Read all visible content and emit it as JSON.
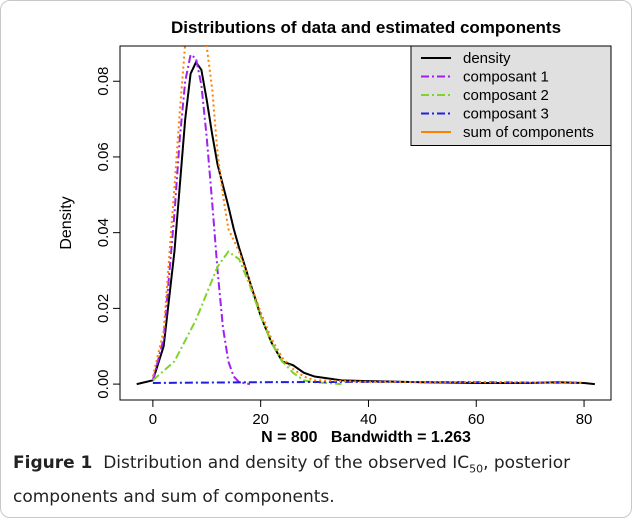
{
  "chart_data": {
    "type": "line",
    "title": "Distributions of data and estimated components",
    "xlabel": "N = 800   Bandwidth = 1.263",
    "ylabel": "Density",
    "xlim": [
      -6.1,
      85
    ],
    "ylim": [
      -0.0042,
      0.0893
    ],
    "xticks": [
      0,
      20,
      40,
      60,
      80
    ],
    "yticks": [
      {
        "value": 0,
        "label": "0.00"
      },
      {
        "value": 0.02,
        "label": "0.02"
      },
      {
        "value": 0.04,
        "label": "0.04"
      },
      {
        "value": 0.06,
        "label": "0.06"
      },
      {
        "value": 0.08,
        "label": "0.08"
      }
    ],
    "legend": "top-right",
    "series": [
      {
        "name": "density",
        "color": "#000000",
        "dash": "none",
        "legend_dash": "none",
        "x": [
          -3,
          0,
          2,
          4,
          6,
          7,
          8,
          9,
          10,
          11,
          12,
          14,
          15,
          16,
          18,
          20,
          22,
          24,
          26,
          28,
          30,
          35,
          40,
          50,
          60,
          70,
          75,
          80,
          82
        ],
        "values": [
          0,
          0.001,
          0.01,
          0.035,
          0.07,
          0.082,
          0.085,
          0.083,
          0.075,
          0.066,
          0.058,
          0.047,
          0.041,
          0.036,
          0.027,
          0.018,
          0.011,
          0.006,
          0.005,
          0.003,
          0.002,
          0.001,
          0.0008,
          0.0005,
          0.0003,
          0.0003,
          0.0005,
          0.0003,
          0
        ]
      },
      {
        "name": "composant 1",
        "color": "#a020f0",
        "dash": "8,3,2,3",
        "legend_dash": "8,3,2,3",
        "x": [
          0,
          2,
          4,
          5,
          6,
          7,
          8,
          9,
          10,
          11,
          12,
          13,
          14,
          15,
          16,
          18
        ],
        "values": [
          0.001,
          0.012,
          0.045,
          0.065,
          0.08,
          0.087,
          0.086,
          0.079,
          0.065,
          0.048,
          0.03,
          0.015,
          0.006,
          0.002,
          0.0005,
          0
        ]
      },
      {
        "name": "composant 2",
        "color": "#7fd32b",
        "dash": "8,3,2,3",
        "legend_dash": "8,3,2,3",
        "x": [
          0,
          4,
          8,
          10,
          12,
          14,
          16,
          18,
          20,
          22,
          24,
          26,
          28,
          30,
          35
        ],
        "values": [
          0.001,
          0.006,
          0.017,
          0.024,
          0.031,
          0.035,
          0.033,
          0.026,
          0.018,
          0.011,
          0.006,
          0.003,
          0.001,
          0.0005,
          0
        ]
      },
      {
        "name": "composant 3",
        "color": "#1f1fdd",
        "dash": "8,3,2,3",
        "legend_dash": "8,3,2,3",
        "x": [
          0,
          20,
          40,
          60,
          80
        ],
        "values": [
          0.0003,
          0.0005,
          0.0006,
          0.0005,
          0.0003
        ]
      },
      {
        "name": "sum of components",
        "color": "#ff7f00",
        "dash": "2,3",
        "legend_dash": "none",
        "x": [
          0,
          2,
          4,
          5,
          6,
          7,
          8,
          9,
          10,
          11,
          12,
          13,
          14,
          16,
          18,
          20,
          22,
          24,
          26,
          28,
          30,
          40,
          60,
          80
        ],
        "values": [
          0.002,
          0.014,
          0.052,
          0.072,
          0.09,
          0.1,
          0.1,
          0.097,
          0.089,
          0.078,
          0.061,
          0.05,
          0.041,
          0.035,
          0.027,
          0.019,
          0.012,
          0.007,
          0.004,
          0.002,
          0.001,
          0.0006,
          0.0005,
          0.0003
        ]
      }
    ]
  },
  "caption": {
    "label": "Figure 1",
    "text_before": "Distribution and density of the observed IC",
    "subscript": "50",
    "text_after": ", posterior components and sum of components."
  }
}
